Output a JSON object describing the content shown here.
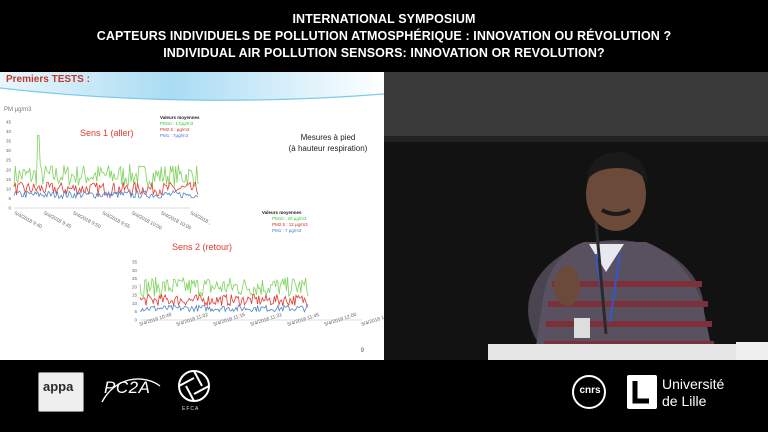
{
  "header": {
    "line1": "INTERNATIONAL SYMPOSIUM",
    "line2": "CAPTEURS INDIVIDUELS DE POLLUTION ATMOSPHÉRIQUE : INNOVATION OU RÉVOLUTION ?",
    "line3": "INDIVIDUAL AIR POLLUTION SENSORS: INNOVATION OR REVOLUTION?"
  },
  "slide": {
    "title": "Premiers TESTS  :",
    "unit": "PM µg/m3",
    "mesures_line1": "Mesures à pied",
    "mesures_line2": "(à hauteur respiration)",
    "page_number": "9",
    "colors": {
      "pm10": "#7cd35b",
      "pm25": "#e23a2e",
      "pm1": "#4f86c6"
    }
  },
  "chart_data": [
    {
      "type": "line",
      "title": "Sens 1 (aller)",
      "ylabel": "PM µg/m3",
      "yticks": [
        "0",
        "5",
        "10",
        "15",
        "20",
        "25",
        "30",
        "35",
        "40",
        "45"
      ],
      "ylim": [
        0,
        45
      ],
      "x": [
        "5/4/2018 9:40",
        "5/4/2018 9:45",
        "5/4/2018 9:50",
        "5/4/2018 9:55",
        "5/4/2018 10:00",
        "5/4/2018 10:05",
        "5/4/2018 10:10"
      ],
      "legend_title": "Valeurs moyennes",
      "series": [
        {
          "name": "PM10 : 17µg/m3",
          "approx_level": 17
        },
        {
          "name": "PM2.5 : µg/m3",
          "approx_level": 10
        },
        {
          "name": "PM1 : 7µg/m3",
          "approx_level": 7
        }
      ]
    },
    {
      "type": "line",
      "title": "Sens 2 (retour)",
      "yticks": [
        "0",
        "5",
        "10",
        "15",
        "20",
        "25",
        "30",
        "35"
      ],
      "ylim": [
        0,
        35
      ],
      "x": [
        "5/4/2018 10:48",
        "5/4/2018 11:02",
        "5/4/2018 11:16",
        "5/4/2018 11:31",
        "5/4/2018 11:45",
        "5/4/2018 12:00",
        "5/4/2018 12:14"
      ],
      "legend_title": "Valeurs moyennes",
      "series": [
        {
          "name": "PM10 :  20  µg/m3",
          "approx_level": 20
        },
        {
          "name": "PM2.5 : 12 µg/m3",
          "approx_level": 12
        },
        {
          "name": "PM1    : 7 µg/m3",
          "approx_level": 7
        }
      ]
    }
  ],
  "footer": {
    "appa_logo": "appa",
    "pc2a_logo": "PC2A",
    "efca_logo": "EFCA",
    "cnrs_logo": "cnrs",
    "univ_line1": "Université",
    "univ_line2": "de Lille"
  }
}
